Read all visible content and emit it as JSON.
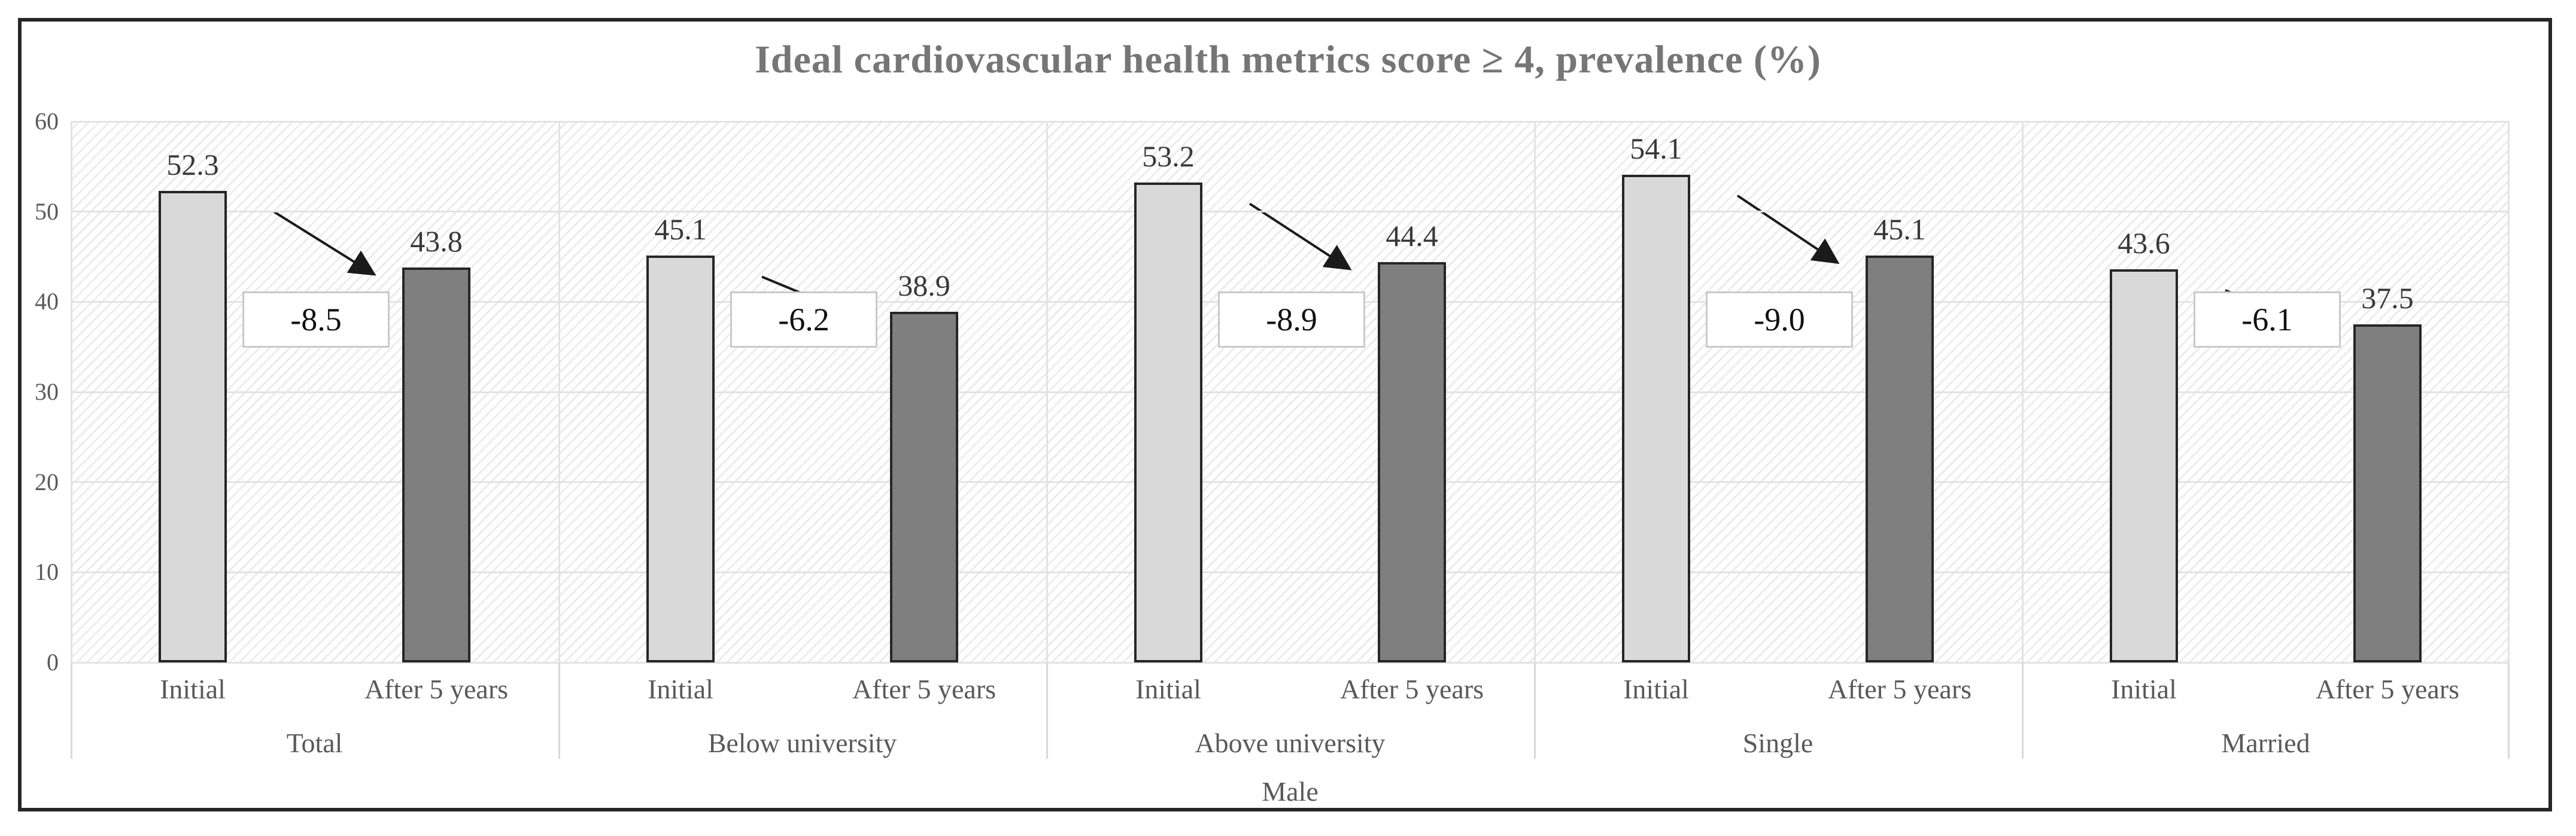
{
  "chart_data": {
    "type": "bar",
    "title": "Ideal cardiovascular health metrics score ≥ 4, prevalence (%)",
    "axis_group_label": "Male",
    "series_labels": [
      "Initial",
      "After 5 years"
    ],
    "ylim": [
      0,
      60
    ],
    "yticks": [
      0,
      10,
      20,
      30,
      40,
      50,
      60
    ],
    "grid": "horizontal",
    "legend_position": "none",
    "groups": [
      {
        "label": "Total",
        "initial": 52.3,
        "after": 43.8,
        "change": "-8.5"
      },
      {
        "label": "Below university",
        "initial": 45.1,
        "after": 38.9,
        "change": "-6.2"
      },
      {
        "label": "Above university",
        "initial": 53.2,
        "after": 44.4,
        "change": "-8.9"
      },
      {
        "label": "Single",
        "initial": 54.1,
        "after": 45.1,
        "change": "-9.0"
      },
      {
        "label": "Married",
        "initial": 43.6,
        "after": 37.5,
        "change": "-6.1"
      }
    ],
    "colors": {
      "initial_bar": "#d9d9d9",
      "after_bar": "#7f7f7f",
      "bar_border": "#262626",
      "gridline": "#e3e3e3",
      "title_text": "#767676",
      "axis_text": "#595959",
      "value_text": "#383838",
      "arrow": "#1a1a1a",
      "change_box_border": "#c9c9c9",
      "change_box_bg": "#ffffff",
      "frame_border": "#262626"
    }
  }
}
